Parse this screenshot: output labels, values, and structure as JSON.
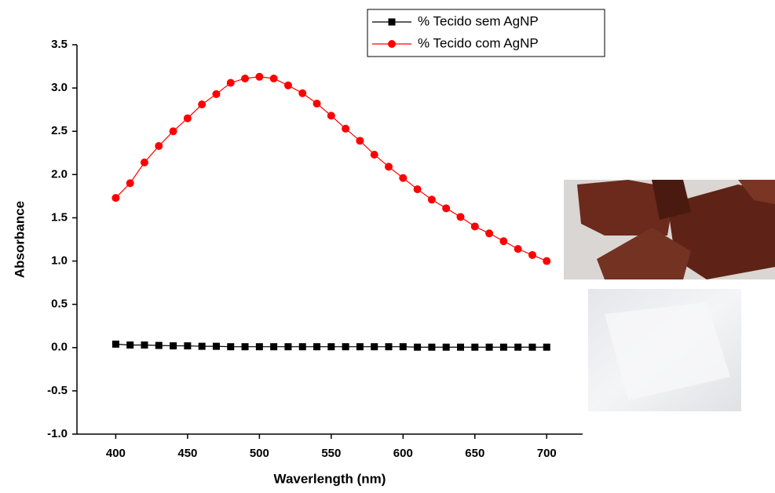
{
  "chart_data": {
    "type": "line",
    "x_label": "Waverlength (nm)",
    "y_label": "Absorbance",
    "x": [
      400,
      410,
      420,
      430,
      440,
      450,
      460,
      470,
      480,
      490,
      500,
      510,
      520,
      530,
      540,
      550,
      560,
      570,
      580,
      590,
      600,
      610,
      620,
      630,
      640,
      650,
      660,
      670,
      680,
      690,
      700
    ],
    "series": [
      {
        "name": "% Tecido sem AgNP",
        "color": "#000000",
        "marker": "square",
        "values": [
          0.04,
          0.03,
          0.03,
          0.025,
          0.02,
          0.02,
          0.015,
          0.015,
          0.01,
          0.01,
          0.01,
          0.01,
          0.01,
          0.01,
          0.01,
          0.01,
          0.01,
          0.01,
          0.01,
          0.01,
          0.01,
          0.005,
          0.005,
          0.005,
          0.005,
          0.005,
          0.005,
          0.005,
          0.005,
          0.005,
          0.005
        ]
      },
      {
        "name": "% Tecido com AgNP",
        "color": "#ff0000",
        "marker": "circle",
        "values": [
          1.73,
          1.9,
          2.14,
          2.33,
          2.5,
          2.65,
          2.81,
          2.93,
          3.06,
          3.11,
          3.13,
          3.11,
          3.03,
          2.94,
          2.82,
          2.68,
          2.53,
          2.39,
          2.23,
          2.09,
          1.96,
          1.83,
          1.71,
          1.61,
          1.51,
          1.4,
          1.32,
          1.23,
          1.14,
          1.07,
          1.0
        ]
      }
    ],
    "xlim": [
      373,
      725
    ],
    "xticks": [
      400,
      450,
      500,
      550,
      600,
      650,
      700
    ],
    "ylim": [
      -1.0,
      3.5
    ],
    "yticks": [
      {
        "value": -1.0,
        "label": "-1.0"
      },
      -0.5,
      {
        "value": 0,
        "label": "0.0"
      },
      0.5,
      {
        "value": 1,
        "label": "1.0"
      },
      1.5,
      {
        "value": 2,
        "label": "2.0"
      },
      2.5,
      {
        "value": 3,
        "label": "3.0"
      },
      3.5
    ],
    "legend": "upper right",
    "grid": false
  }
}
